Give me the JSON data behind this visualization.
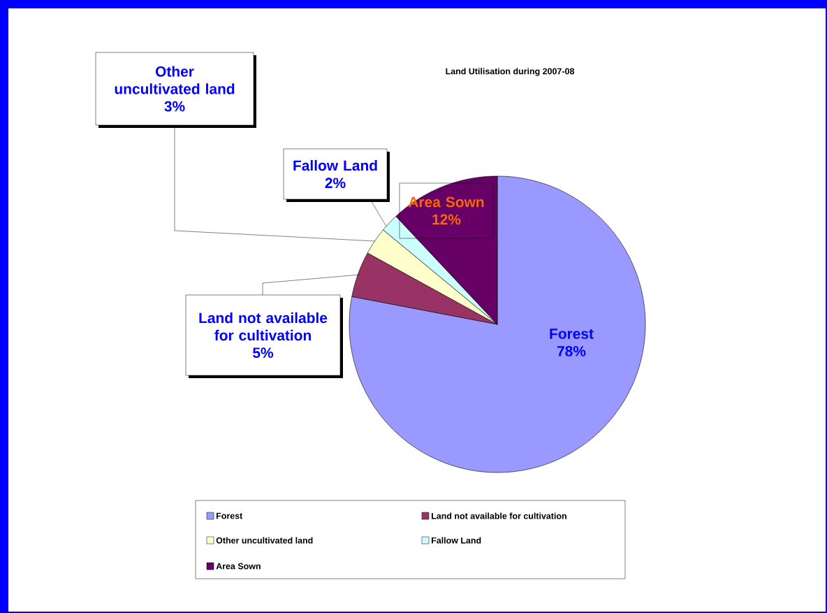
{
  "chart_data": {
    "type": "pie",
    "title": "Land Utilisation during 2007-08",
    "categories": [
      "Forest",
      "Land not available for cultivation",
      "Other uncultivated land",
      "Fallow Land",
      "Area Sown"
    ],
    "values": [
      78,
      5,
      3,
      2,
      12
    ],
    "colors": [
      "#9999ff",
      "#993366",
      "#ffffcc",
      "#ccffff",
      "#660066"
    ],
    "value_labels": [
      "78%",
      "5%",
      "3%",
      "2%",
      "12%"
    ],
    "legend": "bottom"
  }
}
